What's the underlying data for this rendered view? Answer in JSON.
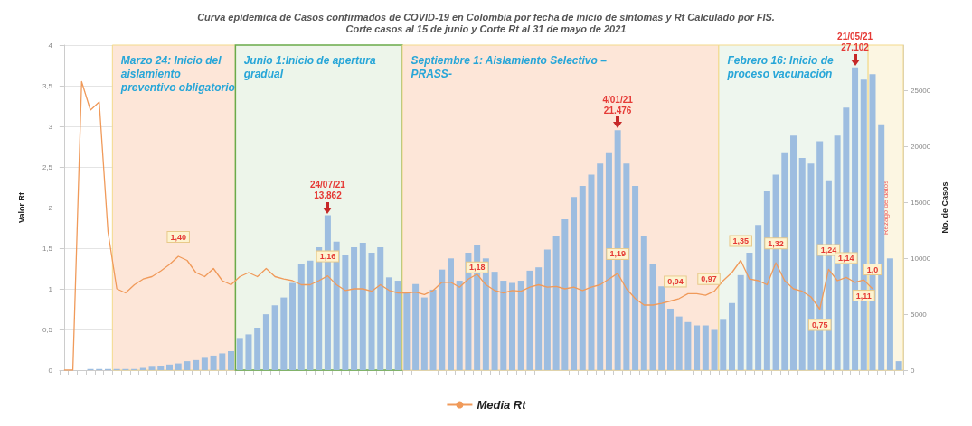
{
  "chart_data": {
    "type": "bar",
    "title": "Curva epidemica de Casos confirmados de COVID-19 en Colombia por fecha de inicio de síntomas y Rt Calculado por FIS.",
    "subtitle": "Corte casos al 15 de junio y Corte Rt al 31 de mayo de 2021",
    "ylabel": "Valor Rt",
    "y2label": "No. de Casos",
    "categories": [
      null,
      null,
      null,
      null,
      null,
      null,
      null,
      null,
      null,
      null,
      null,
      null,
      null,
      null,
      null,
      null,
      null,
      null,
      null,
      null,
      null,
      null,
      null,
      null,
      null,
      null,
      null,
      null,
      null,
      null,
      null,
      null,
      null,
      null,
      null,
      null,
      null,
      null,
      null,
      null,
      null,
      null,
      null,
      null,
      null,
      null,
      null,
      null,
      null,
      null,
      null,
      null,
      null,
      null,
      null,
      null,
      null,
      null,
      null,
      null,
      null,
      null,
      null,
      null,
      null,
      null,
      null,
      null,
      null,
      null,
      null,
      null,
      null,
      null,
      null,
      null,
      null,
      null,
      null,
      null,
      null,
      null,
      null,
      null,
      null,
      null,
      null,
      null,
      null,
      null,
      null,
      null,
      null,
      null,
      null,
      null
    ],
    "series": [
      {
        "axis": "y2",
        "color": "#9dbde0",
        "values": [
          0,
          0,
          0,
          100,
          100,
          100,
          100,
          100,
          100,
          200,
          300,
          400,
          500,
          600,
          800,
          900,
          1100,
          1300,
          1500,
          1700,
          2800,
          3200,
          3800,
          5000,
          5800,
          6500,
          7800,
          9500,
          9800,
          11000,
          13862,
          11500,
          10300,
          11000,
          11400,
          10500,
          11000,
          8300,
          8000,
          7000,
          7700,
          6500,
          7200,
          9000,
          10000,
          8000,
          10500,
          11200,
          10000,
          8800,
          8000,
          7800,
          8000,
          8900,
          9200,
          10800,
          12000,
          13500,
          15500,
          16500,
          17500,
          18500,
          19500,
          21476,
          18500,
          16500,
          12000,
          9500,
          7500,
          5500,
          4800,
          4300,
          4000,
          4000,
          3600,
          4500,
          6000,
          8500,
          10500,
          13000,
          16000,
          17500,
          19500,
          21000,
          19000,
          18500,
          20500,
          17000,
          21000,
          23500,
          27102,
          26000,
          26500,
          22000,
          10000,
          800
        ],
        "value_labels": [
          null,
          null,
          null,
          null,
          null,
          null,
          null,
          null,
          null,
          null,
          null,
          null,
          null,
          null,
          null,
          null,
          null,
          null,
          null,
          null,
          null,
          null,
          null,
          null,
          null,
          null,
          null,
          null,
          null,
          null,
          "24/07/21\n13.862",
          null,
          null,
          null,
          null,
          null,
          null,
          null,
          null,
          null,
          null,
          null,
          null,
          null,
          null,
          null,
          null,
          null,
          null,
          null,
          null,
          null,
          null,
          null,
          null,
          null,
          null,
          null,
          null,
          null,
          null,
          null,
          null,
          "4/01/21\n21.476",
          null,
          null,
          null,
          null,
          null,
          null,
          null,
          null,
          null,
          null,
          null,
          null,
          null,
          null,
          null,
          null,
          null,
          null,
          null,
          null,
          null,
          null,
          null,
          null,
          null,
          null,
          "21/05/21\n27.102",
          null,
          null,
          null,
          null,
          null
        ]
      },
      {
        "type": "line",
        "name": "Media Rt",
        "color": "#f09a5a",
        "values": [
          0,
          0,
          3.55,
          3.2,
          3.3,
          1.7,
          1.0,
          0.95,
          1.05,
          1.12,
          1.15,
          1.22,
          1.3,
          1.4,
          1.35,
          1.2,
          1.15,
          1.25,
          1.1,
          1.05,
          1.15,
          1.2,
          1.15,
          1.25,
          1.15,
          1.12,
          1.1,
          1.05,
          1.05,
          1.1,
          1.16,
          1.05,
          0.98,
          1.0,
          1.0,
          0.97,
          1.05,
          0.98,
          0.95,
          0.95,
          0.96,
          0.93,
          0.98,
          1.08,
          1.08,
          1.02,
          1.12,
          1.18,
          1.05,
          0.98,
          0.95,
          0.98,
          0.97,
          1.02,
          1.05,
          1.02,
          1.03,
          1.0,
          1.02,
          0.98,
          1.02,
          1.05,
          1.12,
          1.19,
          1.0,
          0.88,
          0.8,
          0.8,
          0.82,
          0.85,
          0.88,
          0.94,
          0.94,
          0.92,
          0.97,
          1.1,
          1.2,
          1.35,
          1.12,
          1.1,
          1.05,
          1.32,
          1.1,
          1.0,
          0.97,
          0.9,
          0.75,
          1.24,
          1.1,
          1.14,
          1.08,
          1.11,
          1.0,
          null,
          null,
          null
        ],
        "value_labels": [
          null,
          null,
          null,
          null,
          null,
          null,
          null,
          null,
          null,
          null,
          null,
          null,
          null,
          "1,40",
          null,
          null,
          null,
          null,
          null,
          null,
          null,
          null,
          null,
          null,
          null,
          null,
          null,
          null,
          null,
          null,
          "1,16",
          null,
          null,
          null,
          null,
          null,
          null,
          null,
          null,
          null,
          null,
          null,
          null,
          null,
          null,
          null,
          null,
          "1,18",
          null,
          null,
          null,
          null,
          null,
          null,
          null,
          null,
          null,
          null,
          null,
          null,
          null,
          null,
          null,
          "1,19",
          null,
          null,
          null,
          null,
          null,
          null,
          null,
          "0,94",
          null,
          null,
          "0,97",
          null,
          null,
          "1,35",
          null,
          null,
          null,
          "1,32",
          null,
          null,
          null,
          null,
          "0,75",
          "1,24",
          null,
          "1,14",
          null,
          "1,11",
          "1,0",
          null,
          null,
          null
        ]
      }
    ],
    "ylim": [
      0,
      4
    ],
    "yticks": [
      0,
      {
        "value": 0.5,
        "label": "0,5"
      },
      1,
      {
        "value": 1.5,
        "label": "1,5"
      },
      2,
      {
        "value": 2.5,
        "label": "2,5"
      },
      3,
      {
        "value": 3.5,
        "label": "3,5"
      },
      4
    ],
    "y2lim": [
      0,
      29100
    ],
    "y2ticks": [
      0,
      5000,
      10000,
      15000,
      20000,
      25000
    ],
    "annotations": [
      "Marzo 24: Inicio del aislamiento preventivo obligatorio",
      "Junio 1:Inicio de apertura gradual",
      "Septiembre 1: Aislamiento Selectivo – PRASS-",
      "Febrero 16: Inicio de proceso vacunación",
      "Rezago de datos"
    ],
    "grid": "y",
    "legend": "bottom",
    "marker": "none"
  }
}
